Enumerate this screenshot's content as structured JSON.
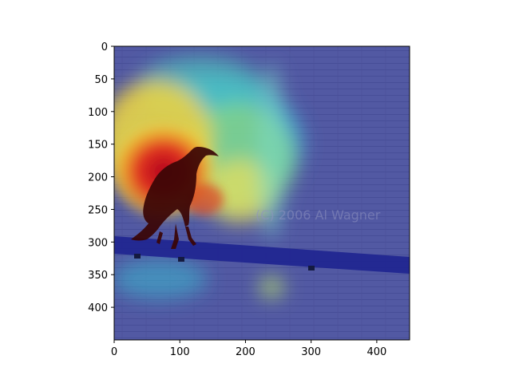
{
  "figure": {
    "type": "image-with-heatmap-overlay",
    "x_axis": {
      "ticks": [
        "0",
        "100",
        "200",
        "300",
        "400"
      ],
      "range": [
        0,
        450
      ]
    },
    "y_axis": {
      "ticks": [
        "0",
        "50",
        "100",
        "150",
        "200",
        "250",
        "300",
        "350",
        "400"
      ],
      "range": [
        0,
        450
      ],
      "inverted": true
    },
    "watermark": "(C) 2006 Al Wagner",
    "subject": "crow-silhouette",
    "colormap": "jet",
    "colors": {
      "background_low": "#2a2f8f",
      "hot": "#c8141a",
      "warm": "#f0c020",
      "mid": "#6ed070"
    }
  }
}
